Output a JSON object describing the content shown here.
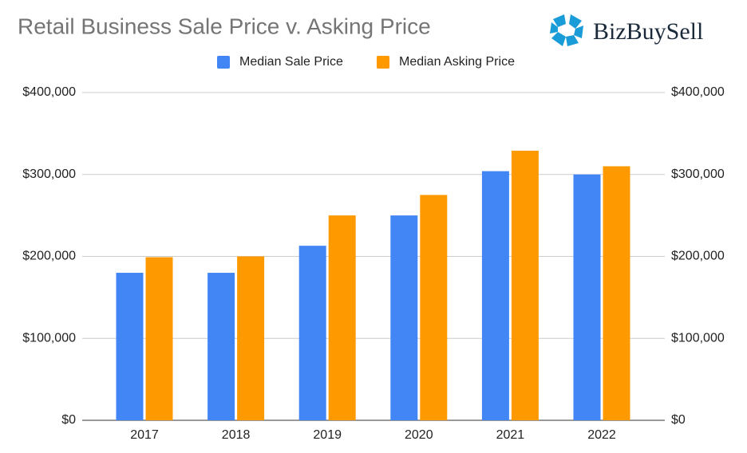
{
  "chart_data": {
    "type": "bar",
    "title": "Retail Business Sale Price v. Asking Price",
    "brand": "BizBuySell",
    "categories": [
      "2017",
      "2018",
      "2019",
      "2020",
      "2021",
      "2022"
    ],
    "series": [
      {
        "name": "Median Sale Price",
        "color": "#4285f4",
        "values": [
          180000,
          180000,
          213000,
          250000,
          304000,
          300000
        ]
      },
      {
        "name": "Median Asking Price",
        "color": "#ff9900",
        "values": [
          199000,
          200000,
          250000,
          275000,
          329000,
          310000
        ]
      }
    ],
    "ylim": [
      0,
      400000
    ],
    "yticks": [
      {
        "value": 0,
        "label": "$0"
      },
      {
        "value": 100000,
        "label": "$100,000"
      },
      {
        "value": 200000,
        "label": "$200,000"
      },
      {
        "value": 300000,
        "label": "$300,000"
      },
      {
        "value": 400000,
        "label": "$400,000"
      }
    ],
    "y2lim": [
      0,
      400000
    ],
    "y2ticks": [
      {
        "value": 0,
        "label": "$0"
      },
      {
        "value": 100000,
        "label": "$100,000"
      },
      {
        "value": 200000,
        "label": "$200,000"
      },
      {
        "value": 300000,
        "label": "$300,000"
      },
      {
        "value": 400000,
        "label": "$400,000"
      }
    ],
    "grid": true,
    "legend": "top"
  }
}
